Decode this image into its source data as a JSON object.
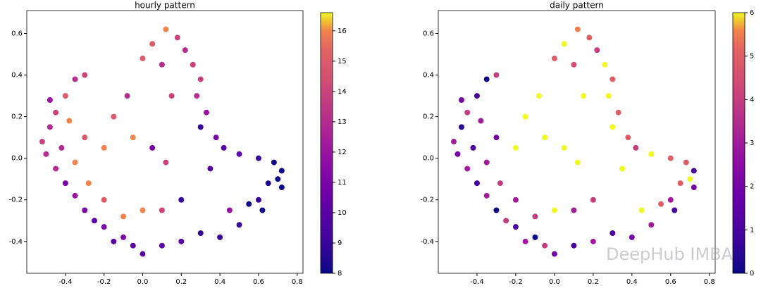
{
  "chart_data": [
    {
      "type": "scatter",
      "title": "hourly pattern",
      "colormap": "plasma",
      "x": [
        0.12,
        0.18,
        0.05,
        0.22,
        0.0,
        0.26,
        0.1,
        0.3,
        0.28,
        0.33,
        0.3,
        0.38,
        0.42,
        0.5,
        0.6,
        0.68,
        0.72,
        0.7,
        0.65,
        0.72,
        0.6,
        0.55,
        0.62,
        0.5,
        0.4,
        0.3,
        0.2,
        0.1,
        0.0,
        -0.05,
        -0.1,
        -0.15,
        -0.2,
        -0.25,
        -0.3,
        -0.35,
        -0.4,
        -0.45,
        -0.5,
        -0.52,
        -0.48,
        -0.45,
        -0.48,
        -0.4,
        -0.35,
        -0.3,
        -0.38,
        -0.3,
        -0.35,
        -0.28,
        -0.2,
        -0.1,
        0.0,
        0.1,
        0.2,
        -0.15,
        -0.05,
        0.05,
        0.12,
        -0.08,
        0.15,
        -0.2,
        0.35,
        0.45,
        -0.42
      ],
      "values": [
        0.62,
        0.58,
        0.55,
        0.52,
        0.48,
        0.45,
        0.45,
        0.38,
        0.3,
        0.22,
        0.15,
        0.1,
        0.05,
        0.02,
        0.0,
        -0.02,
        -0.06,
        -0.1,
        -0.12,
        -0.14,
        -0.2,
        -0.22,
        -0.25,
        -0.32,
        -0.38,
        -0.36,
        -0.4,
        -0.42,
        -0.46,
        -0.42,
        -0.38,
        -0.4,
        -0.33,
        -0.3,
        -0.25,
        -0.18,
        -0.12,
        -0.05,
        0.02,
        0.08,
        0.15,
        0.22,
        0.28,
        0.3,
        0.38,
        0.4,
        0.18,
        0.1,
        -0.02,
        -0.12,
        -0.2,
        -0.28,
        -0.25,
        -0.25,
        -0.2,
        0.2,
        0.1,
        0.05,
        -0.02,
        0.3,
        0.3,
        0.05,
        -0.05,
        -0.25,
        0.05
      ],
      "c": [
        16,
        14,
        15,
        13,
        15,
        14,
        13,
        14,
        13,
        12,
        9,
        11,
        10,
        10,
        9,
        8,
        8,
        8,
        8.5,
        8,
        9,
        8,
        8,
        9,
        9,
        9,
        10,
        10,
        10,
        10,
        11,
        10,
        11,
        10,
        11,
        12,
        11,
        13,
        13,
        14,
        13,
        14,
        12,
        15,
        13,
        14,
        16,
        15,
        16,
        16,
        15,
        16,
        16,
        14,
        9,
        15,
        16,
        11,
        14,
        13,
        14,
        16,
        10,
        12,
        13
      ],
      "xlim": [
        -0.6,
        0.83
      ],
      "ylim": [
        -0.553,
        0.71
      ],
      "xticks": [
        -0.4,
        -0.2,
        {
          "value": 0,
          "label": "0.0"
        },
        0.2,
        0.4,
        0.6,
        0.8
      ],
      "yticks": [
        -0.4,
        -0.2,
        {
          "value": 0,
          "label": "0.0"
        },
        0.2,
        0.4,
        0.6
      ],
      "clim": [
        8,
        16.6
      ],
      "cticks": [
        8,
        9,
        10,
        11,
        12,
        13,
        14,
        15,
        16
      ]
    },
    {
      "type": "scatter",
      "title": "daily pattern",
      "colormap": "plasma",
      "annotations": [
        "DeepHub IMBA"
      ],
      "x": [
        0.12,
        0.18,
        0.05,
        0.22,
        0.0,
        0.26,
        0.1,
        0.3,
        0.28,
        0.33,
        0.3,
        0.38,
        0.42,
        0.5,
        0.6,
        0.68,
        0.72,
        0.7,
        0.65,
        0.72,
        0.6,
        0.55,
        0.62,
        0.5,
        0.4,
        0.3,
        0.2,
        0.1,
        0.0,
        -0.05,
        -0.1,
        -0.15,
        -0.2,
        -0.25,
        -0.3,
        -0.35,
        -0.4,
        -0.45,
        -0.5,
        -0.52,
        -0.48,
        -0.45,
        -0.48,
        -0.4,
        -0.35,
        -0.3,
        -0.38,
        -0.3,
        -0.35,
        -0.28,
        -0.2,
        -0.1,
        0.0,
        0.1,
        0.2,
        -0.15,
        -0.05,
        0.05,
        0.12,
        -0.08,
        0.15,
        -0.2,
        0.35,
        0.45,
        -0.42
      ],
      "values": [
        0.62,
        0.58,
        0.55,
        0.52,
        0.48,
        0.45,
        0.45,
        0.38,
        0.3,
        0.22,
        0.15,
        0.1,
        0.05,
        0.02,
        0.0,
        -0.02,
        -0.06,
        -0.1,
        -0.12,
        -0.14,
        -0.2,
        -0.22,
        -0.25,
        -0.32,
        -0.38,
        -0.36,
        -0.4,
        -0.42,
        -0.46,
        -0.42,
        -0.38,
        -0.4,
        -0.33,
        -0.3,
        -0.25,
        -0.18,
        -0.12,
        -0.05,
        0.02,
        0.08,
        0.15,
        0.22,
        0.28,
        0.3,
        0.38,
        0.4,
        0.18,
        0.1,
        -0.02,
        -0.12,
        -0.2,
        -0.28,
        -0.25,
        -0.25,
        -0.2,
        0.2,
        0.1,
        0.05,
        -0.02,
        0.3,
        0.3,
        0.05,
        -0.05,
        -0.25,
        0.05
      ],
      "c": [
        5.5,
        5,
        6,
        4,
        5,
        6,
        4.5,
        5,
        6,
        5,
        6,
        5,
        4,
        6,
        5,
        5,
        1,
        6,
        5,
        2,
        3,
        5,
        1,
        3,
        2,
        1,
        3,
        1,
        2,
        4,
        0,
        3,
        1,
        4,
        0,
        3,
        1,
        3,
        2,
        3,
        0.5,
        4,
        2,
        1,
        0,
        4,
        3,
        2,
        3,
        4,
        3,
        4,
        6,
        3,
        4,
        6,
        6,
        6,
        6,
        6,
        6,
        6,
        6,
        6,
        1
      ],
      "xlim": [
        -0.6,
        0.83
      ],
      "ylim": [
        -0.553,
        0.71
      ],
      "xticks": [
        -0.4,
        -0.2,
        {
          "value": 0,
          "label": "0.0"
        },
        0.2,
        0.4,
        0.6,
        0.8
      ],
      "yticks": [
        -0.4,
        -0.2,
        {
          "value": 0,
          "label": "0.0"
        },
        0.2,
        0.4,
        0.6
      ],
      "clim": [
        0,
        6
      ],
      "cticks": [
        0,
        1,
        2,
        3,
        4,
        5,
        6
      ]
    }
  ]
}
